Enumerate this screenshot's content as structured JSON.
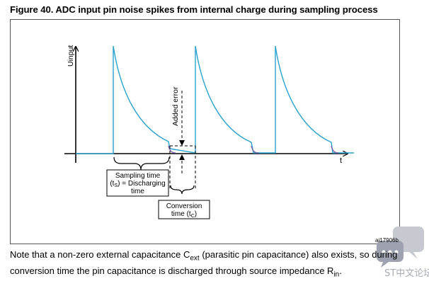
{
  "figure": {
    "title": "Figure 40. ADC input pin noise spikes from internal charge during sampling process",
    "y_axis_label": "Uinput",
    "x_axis_label": "t",
    "added_error_label": "Added error",
    "sampling_box": {
      "line1": "Sampling time",
      "line2_prefix": "(t",
      "line2_sub": "S",
      "line2_suffix": ") = Discharging",
      "line3": "time"
    },
    "conversion_box": {
      "line1": "Conversion",
      "line2_prefix": "time (t",
      "line2_sub": "C",
      "line2_suffix": ")"
    },
    "figure_id": "ai17906b",
    "waveform_color": "#2aa3cf",
    "discharge_color": "#7b5ea8"
  },
  "note": {
    "t1": "Note that a non-zero external capacitance C",
    "s1": "ext",
    "t2": " (parasitic pin capacitance) also exists, so during conversion time the pin capacitance is discharged through source impedance R",
    "s2": "in",
    "t3": "."
  },
  "watermark": {
    "text": "ST中文论坛"
  }
}
